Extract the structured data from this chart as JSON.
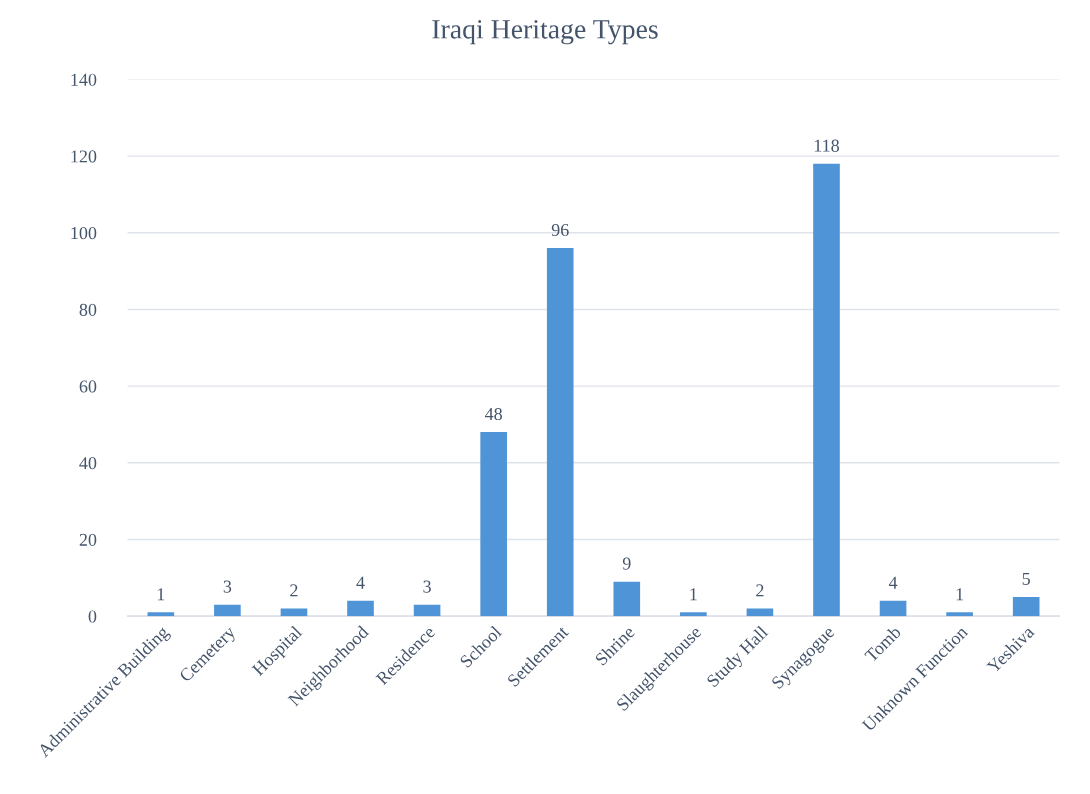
{
  "chart_data": {
    "type": "bar",
    "title": "Iraqi Heritage Types",
    "categories": [
      "Administrative Building",
      "Cemetery",
      "Hospital",
      "Neighborhood",
      "Residence",
      "School",
      "Settlement",
      "Shrine",
      "Slaughterhouse",
      "Study Hall",
      "Synagogue",
      "Tomb",
      "Unknown Function",
      "Yeshiva"
    ],
    "values": [
      1,
      3,
      2,
      4,
      3,
      48,
      96,
      9,
      1,
      2,
      118,
      4,
      1,
      5
    ],
    "color": "#4e94d6",
    "ylim": [
      0,
      140
    ],
    "yticks": [
      0,
      20,
      40,
      60,
      80,
      100,
      120,
      140
    ],
    "grid": "y",
    "data_labels": true
  }
}
